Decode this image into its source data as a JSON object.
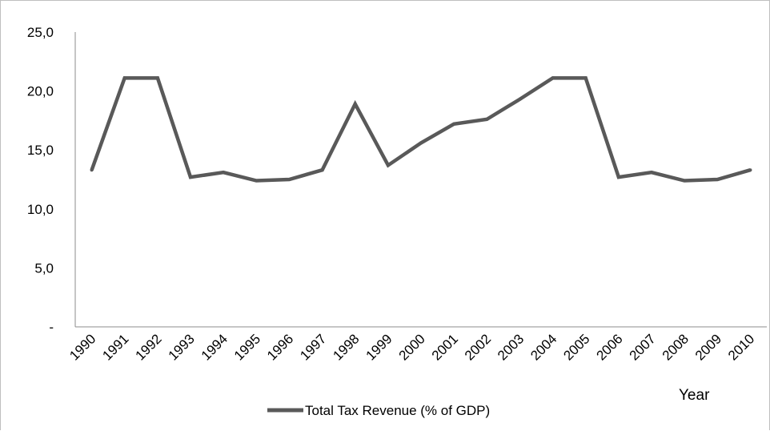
{
  "chart_data": {
    "type": "line",
    "title": "",
    "xlabel": "Year",
    "ylabel": "",
    "categories": [
      "1990",
      "1991",
      "1992",
      "1993",
      "1994",
      "1995",
      "1996",
      "1997",
      "1998",
      "1999",
      "2000",
      "2001",
      "2002",
      "2003",
      "2004",
      "2005",
      "2006",
      "2007",
      "2008",
      "2009",
      "2010"
    ],
    "series": [
      {
        "name": "Total Tax Revenue (% of GDP)",
        "color": "#595959",
        "values": [
          13.3,
          21.1,
          21.1,
          12.7,
          13.1,
          12.4,
          12.5,
          13.3,
          18.9,
          13.7,
          15.6,
          17.2,
          17.6,
          19.3,
          21.1,
          21.1,
          12.7,
          13.1,
          12.4,
          12.5,
          13.3
        ]
      }
    ],
    "ylim": [
      0,
      25
    ],
    "yticks": [
      0,
      5,
      10,
      15,
      20,
      25
    ],
    "ytick_labels": [
      "-",
      "5,0",
      "10,0",
      "15,0",
      "20,0",
      "25,0"
    ],
    "grid": false,
    "legend_position": "bottom"
  }
}
